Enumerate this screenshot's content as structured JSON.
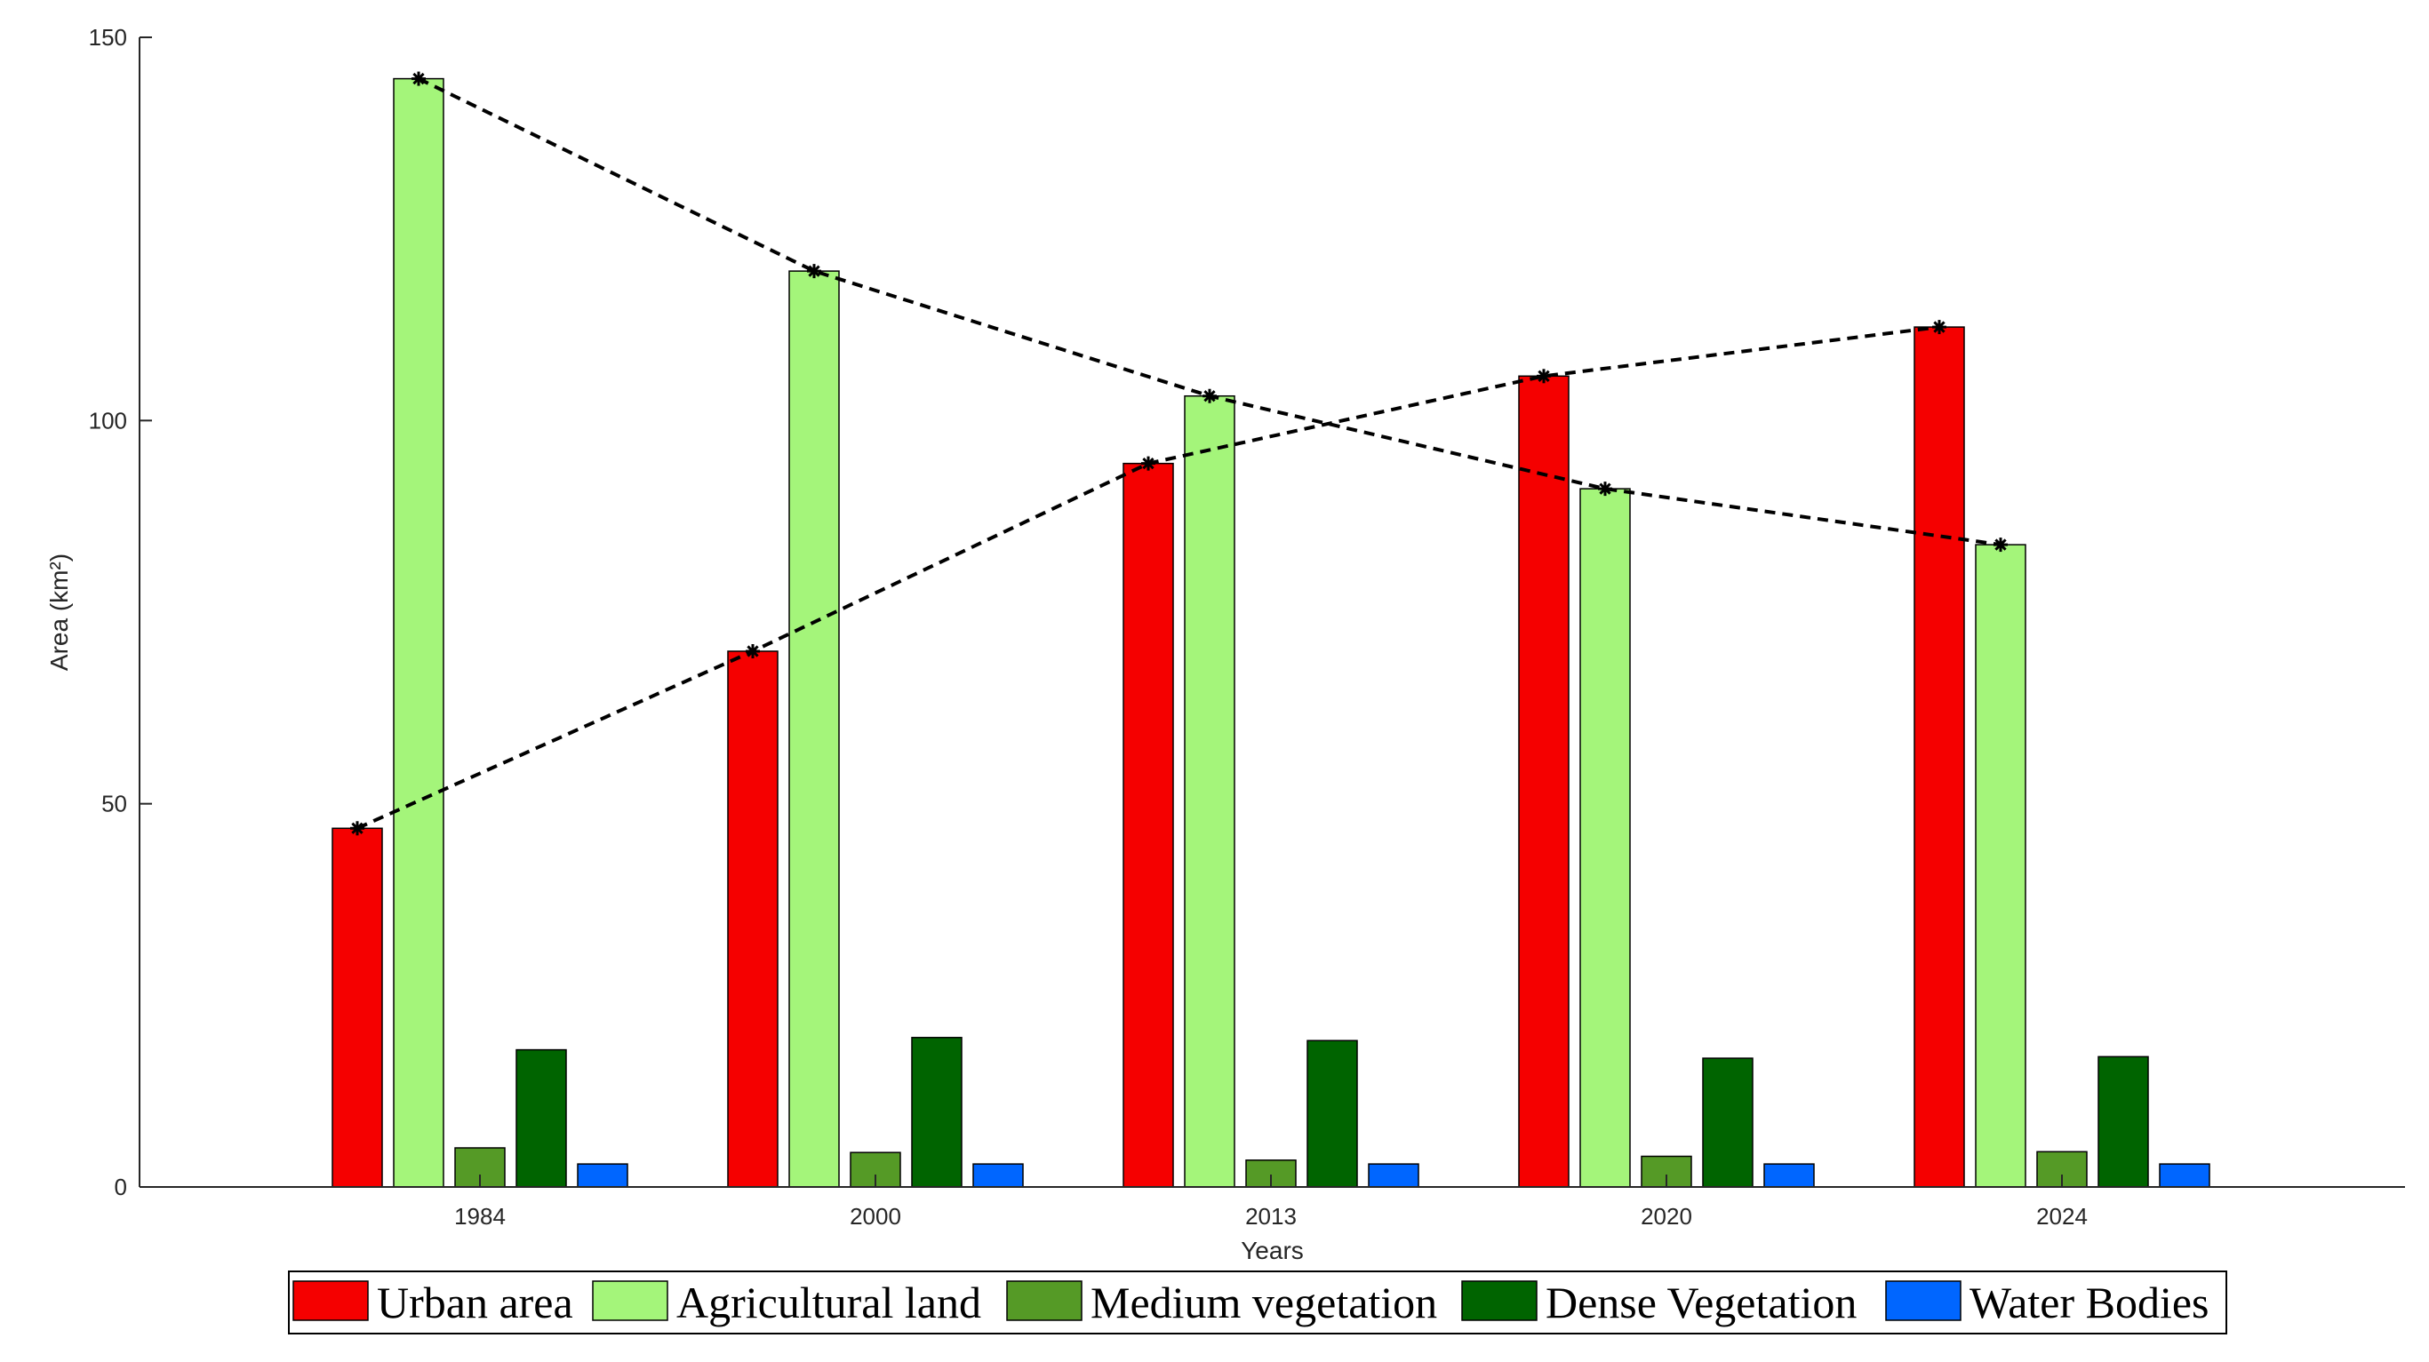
{
  "chart_data": {
    "type": "bar",
    "title": "",
    "xlabel": "Years",
    "ylabel": "Area (km²)",
    "ylim": [
      0,
      150
    ],
    "yticks": [
      0,
      50,
      100,
      150
    ],
    "categories": [
      "1984",
      "2000",
      "2013",
      "2020",
      "2024"
    ],
    "series": [
      {
        "name": "Urban area",
        "color": "#f50000",
        "values": [
          46.8,
          69.9,
          94.4,
          105.8,
          112.2
        ]
      },
      {
        "name": "Agricultural land",
        "color": "#a4f57a",
        "values": [
          144.6,
          119.5,
          103.2,
          91.1,
          83.8
        ]
      },
      {
        "name": "Medium vegetation",
        "color": "#559a26",
        "values": [
          5.1,
          4.5,
          3.5,
          4.0,
          4.6
        ]
      },
      {
        "name": "Dense Vegetation",
        "color": "#006400",
        "values": [
          17.9,
          19.5,
          19.1,
          16.8,
          17.0
        ]
      },
      {
        "name": "Water Bodies",
        "color": "#0066ff",
        "values": [
          3.0,
          3.0,
          3.0,
          3.0,
          3.0
        ]
      }
    ],
    "trend_lines": [
      {
        "series": "Urban area",
        "style": "dashed",
        "marker": "asterisk"
      },
      {
        "series": "Agricultural land",
        "style": "dashed",
        "marker": "asterisk"
      }
    ],
    "grid": false,
    "legend_position": "bottom-horizontal"
  }
}
